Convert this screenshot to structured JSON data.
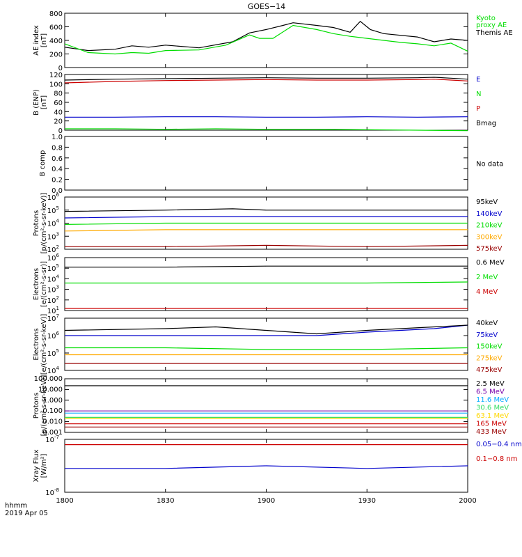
{
  "title": "GOES−14",
  "date_label": {
    "line1": "hhmm",
    "line2": "2019 Apr 05"
  },
  "x_ticks": [
    "1800",
    "1830",
    "1900",
    "1930",
    "2000"
  ],
  "colors": {
    "black": "#000000",
    "red": "#cc0000",
    "green": "#00dd00",
    "blue": "#0000cc",
    "orange": "#ffaa00",
    "cyan": "#00aaff",
    "yellow": "#ffd700",
    "purple": "#7700aa",
    "lime": "#33dd66",
    "dkred": "#990000"
  },
  "chart_data": [
    {
      "type": "line",
      "ylabel": [
        "AE index",
        "[nT]"
      ],
      "ylim": [
        0,
        800
      ],
      "yticks": [
        "0",
        "200",
        "400",
        "600",
        "800"
      ],
      "x_units": "hhmm",
      "series": [
        {
          "name": "Themis AE",
          "color": "#000000",
          "label_lines": [
            "Themis AE"
          ],
          "x": [
            1800,
            1807,
            1815,
            1820,
            1825,
            1830,
            1840,
            1850,
            1855,
            1900,
            1905,
            1908,
            1915,
            1920,
            1925,
            1928,
            1931,
            1935,
            1945,
            1950,
            1955,
            2000
          ],
          "values": [
            300,
            250,
            270,
            320,
            300,
            330,
            290,
            380,
            510,
            560,
            620,
            660,
            620,
            590,
            520,
            680,
            560,
            500,
            450,
            380,
            420,
            400
          ]
        },
        {
          "name": "Kyoto proxy AE",
          "color": "#00dd00",
          "label_lines": [
            "Kyoto",
            "proxy AE"
          ],
          "x": [
            1800,
            1807,
            1815,
            1820,
            1825,
            1830,
            1840,
            1848,
            1855,
            1858,
            1902,
            1908,
            1915,
            1920,
            1925,
            1930,
            1940,
            1945,
            1950,
            1955,
            2000
          ],
          "values": [
            350,
            220,
            200,
            220,
            210,
            250,
            260,
            330,
            480,
            430,
            430,
            620,
            560,
            500,
            460,
            430,
            370,
            350,
            320,
            360,
            240
          ]
        }
      ]
    },
    {
      "type": "line",
      "ylabel": [
        "B (ENP)",
        "[nT]"
      ],
      "ylim": [
        0,
        120
      ],
      "yticks": [
        "0",
        "20",
        "40",
        "60",
        "80",
        "100",
        "120"
      ],
      "series": [
        {
          "name": "Bmag",
          "color": "#000000",
          "x": [
            1800,
            1815,
            1830,
            1845,
            1900,
            1915,
            1930,
            1945,
            1950,
            1955,
            2000
          ],
          "values": [
            108,
            110,
            111,
            112,
            113,
            112,
            112,
            113,
            114,
            112,
            110
          ]
        },
        {
          "name": "P",
          "color": "#cc0000",
          "x": [
            1800,
            1815,
            1830,
            1845,
            1900,
            1915,
            1930,
            1945,
            1950,
            1955,
            2000
          ],
          "values": [
            102,
            105,
            107,
            108,
            109,
            108,
            108,
            109,
            110,
            108,
            106
          ]
        },
        {
          "name": "N",
          "color": "#00dd00",
          "x": [
            1800,
            1815,
            1830,
            1845,
            1900,
            1915,
            1930,
            1945,
            2000
          ],
          "values": [
            3,
            3,
            2,
            3,
            2,
            2,
            1,
            0,
            -1
          ]
        },
        {
          "name": "E",
          "color": "#0000cc",
          "x": [
            1800,
            1815,
            1830,
            1845,
            1900,
            1915,
            1930,
            1945,
            2000
          ],
          "values": [
            28,
            28,
            29,
            29,
            28,
            28,
            29,
            28,
            29
          ]
        }
      ]
    },
    {
      "type": "line",
      "ylabel": [
        "B comp"
      ],
      "ylim": [
        0,
        1
      ],
      "yticks": [
        "0.0",
        "0.2",
        "0.4",
        "0.6",
        "0.8",
        "1.0"
      ],
      "note": "No data",
      "series": []
    },
    {
      "type": "line",
      "y_scale": "log",
      "ylabel": [
        "Protons",
        "[p/(cm²-s-sr-keV)]"
      ],
      "ylim_exp": [
        2,
        6
      ],
      "series": [
        {
          "name": "575keV",
          "color": "#990000",
          "x": [
            1800,
            1830,
            1900,
            1930,
            2000
          ],
          "values": [
            2.2,
            2.2,
            2.3,
            2.2,
            2.3
          ]
        },
        {
          "name": "300keV",
          "color": "#ffaa00",
          "x": [
            1800,
            1830,
            1900,
            1930,
            2000
          ],
          "values": [
            3.4,
            3.5,
            3.5,
            3.5,
            3.5
          ]
        },
        {
          "name": "210keV",
          "color": "#00dd00",
          "x": [
            1800,
            1830,
            1900,
            1930,
            2000
          ],
          "values": [
            3.9,
            4.0,
            4.0,
            4.0,
            4.0
          ]
        },
        {
          "name": "140keV",
          "color": "#0000cc",
          "x": [
            1800,
            1830,
            1900,
            1930,
            2000
          ],
          "values": [
            4.4,
            4.5,
            4.5,
            4.5,
            4.5
          ]
        },
        {
          "name": "95keV",
          "color": "#000000",
          "x": [
            1800,
            1830,
            1850,
            1900,
            1930,
            2000
          ],
          "values": [
            4.9,
            5.0,
            5.1,
            5.0,
            5.0,
            5.0
          ]
        }
      ]
    },
    {
      "type": "line",
      "y_scale": "log",
      "ylabel": [
        "Electrons",
        "[e/(cm²-s-sr)]"
      ],
      "ylim_exp": [
        1,
        6
      ],
      "series": [
        {
          "name": "4 MeV",
          "color": "#cc0000",
          "x": [
            1800,
            1830,
            1900,
            1930,
            2000
          ],
          "values": [
            1.2,
            1.2,
            1.2,
            1.2,
            1.2
          ]
        },
        {
          "name": "2 MeV",
          "color": "#00dd00",
          "x": [
            1800,
            1830,
            1900,
            1930,
            2000
          ],
          "values": [
            3.6,
            3.6,
            3.6,
            3.6,
            3.7
          ]
        },
        {
          "name": "0.6 MeV",
          "color": "#000000",
          "x": [
            1800,
            1830,
            1900,
            1930,
            2000
          ],
          "values": [
            5.1,
            5.1,
            5.2,
            5.2,
            5.2
          ]
        }
      ]
    },
    {
      "type": "line",
      "y_scale": "log",
      "ylabel": [
        "Electrons",
        "[e/(cm²-s-sr-keV)]"
      ],
      "ylim_exp": [
        4,
        7
      ],
      "series": [
        {
          "name": "475keV",
          "color": "#990000",
          "x": [
            1800,
            1830,
            1900,
            1930,
            2000
          ],
          "values": [
            4.4,
            4.4,
            4.4,
            4.4,
            4.4
          ]
        },
        {
          "name": "275keV",
          "color": "#ffaa00",
          "x": [
            1800,
            1830,
            1900,
            1930,
            2000
          ],
          "values": [
            4.9,
            4.9,
            4.9,
            4.9,
            4.9
          ]
        },
        {
          "name": "150keV",
          "color": "#00dd00",
          "x": [
            1800,
            1830,
            1900,
            1930,
            2000
          ],
          "values": [
            5.3,
            5.3,
            5.2,
            5.2,
            5.3
          ]
        },
        {
          "name": "75keV",
          "color": "#0000cc",
          "x": [
            1800,
            1830,
            1900,
            1915,
            1930,
            1950,
            2000
          ],
          "values": [
            6.0,
            6.0,
            6.0,
            6.0,
            6.2,
            6.4,
            6.6
          ]
        },
        {
          "name": "40keV",
          "color": "#000000",
          "x": [
            1800,
            1830,
            1845,
            1900,
            1915,
            1930,
            1950,
            2000
          ],
          "values": [
            6.3,
            6.4,
            6.5,
            6.3,
            6.1,
            6.3,
            6.5,
            6.6
          ]
        }
      ]
    },
    {
      "type": "line",
      "y_scale": "log",
      "ylabel": [
        "Protons",
        "[p/(cm²-s-sr-keV)]"
      ],
      "ylim_exp": [
        -3,
        2
      ],
      "yticks": [
        "0.001",
        "0.010",
        "0.100",
        "1.000",
        "10.000",
        "100.000"
      ],
      "series": [
        {
          "name": "433 MeV",
          "color": "#990000",
          "x": [
            1800,
            1900,
            2000
          ],
          "values": [
            -2.5,
            -2.5,
            -2.5
          ]
        },
        {
          "name": "165 MeV",
          "color": "#cc0000",
          "x": [
            1800,
            1900,
            2000
          ],
          "values": [
            -2.2,
            -2.2,
            -2.2
          ]
        },
        {
          "name": "63.1 MeV",
          "color": "#ffd700",
          "x": [
            1800,
            1900,
            2000
          ],
          "values": [
            -1.7,
            -1.7,
            -1.7
          ]
        },
        {
          "name": "30.6 MeV",
          "color": "#33dd66",
          "x": [
            1800,
            1900,
            2000
          ],
          "values": [
            -1.6,
            -1.6,
            -1.6
          ]
        },
        {
          "name": "11.6 MeV",
          "color": "#00aaff",
          "x": [
            1800,
            1900,
            2000
          ],
          "values": [
            -1.2,
            -1.2,
            -1.2
          ]
        },
        {
          "name": "6.5 MeV",
          "color": "#7700aa",
          "x": [
            1800,
            1900,
            2000
          ],
          "values": [
            -1.0,
            -1.0,
            -1.0
          ]
        },
        {
          "name": "2.5 MeV",
          "color": "#000000",
          "x": [
            1800,
            1900,
            2000
          ],
          "values": [
            1.35,
            1.35,
            1.35
          ]
        }
      ]
    },
    {
      "type": "line",
      "y_scale": "log",
      "ylabel": [
        "Xray Flux",
        "[W/m²]"
      ],
      "ylim_exp": [
        -8,
        -7
      ],
      "series": [
        {
          "name": "0.1−0.8 nm",
          "color": "#cc0000",
          "x": [
            1800,
            1830,
            1900,
            1930,
            2000
          ],
          "values": [
            -7.1,
            -7.1,
            -7.1,
            -7.1,
            -7.1
          ]
        },
        {
          "name": "0.05−0.4 nm",
          "color": "#0000cc",
          "x": [
            1800,
            1830,
            1900,
            1930,
            2000
          ],
          "values": [
            -7.55,
            -7.55,
            -7.5,
            -7.55,
            -7.5
          ]
        }
      ]
    }
  ]
}
